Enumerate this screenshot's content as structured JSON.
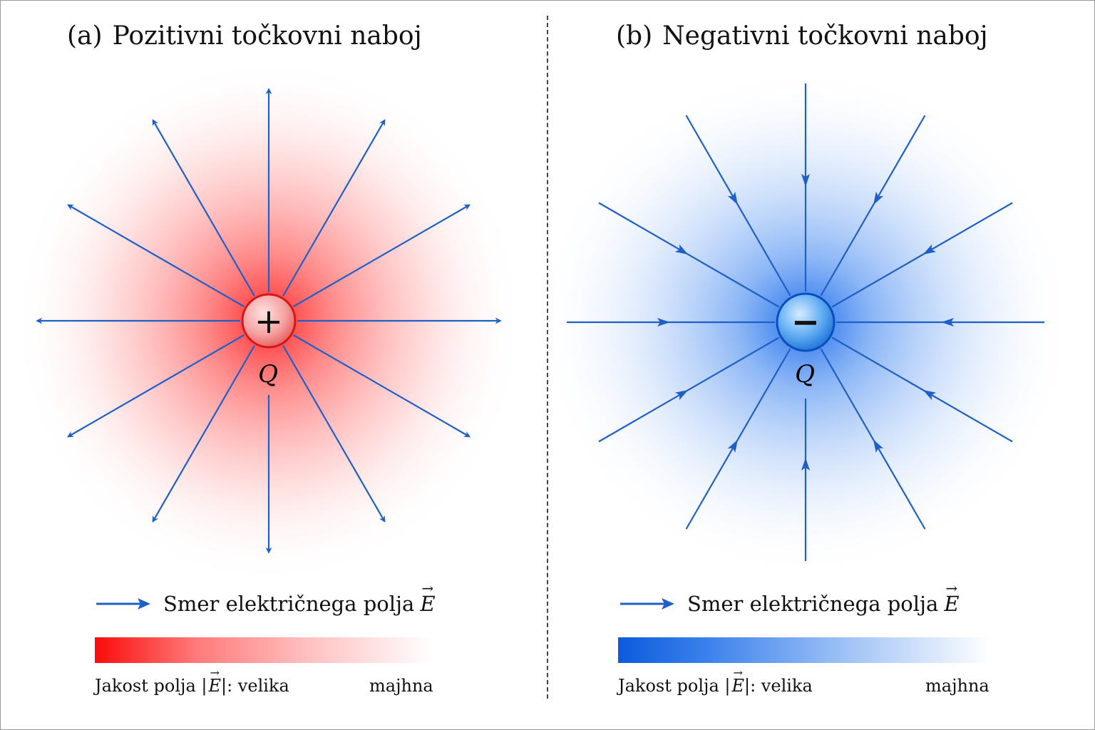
{
  "panels": [
    {
      "id": "a",
      "tag": "(a)",
      "title": "Pozitivni točkovni naboj",
      "charge_sign": "+",
      "charge_label": "Q",
      "field_direction": "outward",
      "line_count": 12,
      "colors": {
        "glow": "#ff2a2a",
        "charge_fill": "#f4a7a7",
        "charge_stroke": "#d91414",
        "field_line": "#1f5fc8"
      },
      "legend_text": "Smer električnega polja",
      "legend_symbol": "E",
      "scale_text": "Jakost polja |",
      "scale_symbol": "E",
      "scale_suffix": "|: velika",
      "scale_low": "majhna"
    },
    {
      "id": "b",
      "tag": "(b)",
      "title": "Negativni točkovni naboj",
      "charge_sign": "−",
      "charge_label": "Q",
      "field_direction": "inward",
      "line_count": 12,
      "colors": {
        "glow": "#1f6ff0",
        "charge_fill": "#5aa7f2",
        "charge_stroke": "#0b52c2",
        "field_line": "#1f5fc8"
      },
      "legend_text": "Smer električnega polja",
      "legend_symbol": "E",
      "scale_text": "Jakost polja |",
      "scale_symbol": "E",
      "scale_suffix": "|: velika",
      "scale_low": "majhna"
    }
  ]
}
